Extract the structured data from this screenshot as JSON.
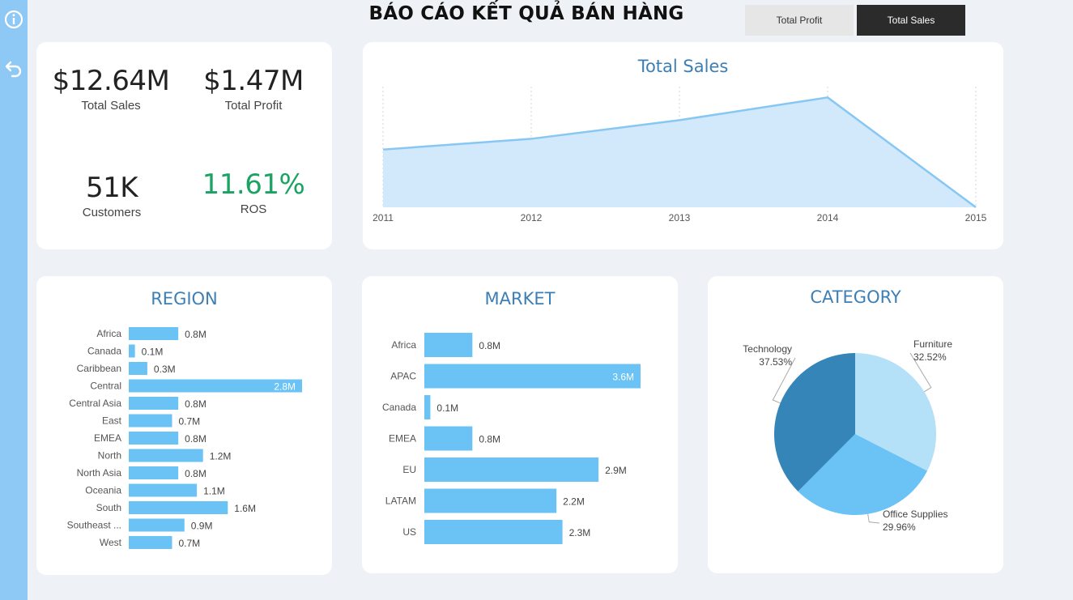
{
  "sidebar": {
    "info_icon": "info-icon",
    "back_icon": "back-arrow-icon"
  },
  "header": {
    "title": "BÁO CÁO KẾT QUẢ BÁN HÀNG"
  },
  "toggles": {
    "profit_label": "Total Profit",
    "sales_label": "Total Sales",
    "active": "Total Sales"
  },
  "kpis": {
    "total_sales": {
      "value": "$12.64M",
      "label": "Total Sales"
    },
    "total_profit": {
      "value": "$1.47M",
      "label": "Total Profit"
    },
    "customers": {
      "value": "51K",
      "label": "Customers"
    },
    "ros": {
      "value": "11.61%",
      "label": "ROS"
    }
  },
  "colors": {
    "bar": "#6bc3f5",
    "area_fill": "#d2e8fb",
    "area_line": "#86c7f3",
    "title": "#3d7fb5",
    "ros": "#1aa363",
    "pie": [
      "#b4e0f8",
      "#6bc3f5",
      "#3585b8"
    ]
  },
  "chart_data": [
    {
      "type": "area",
      "title": "Total Sales",
      "x": [
        "2011",
        "2012",
        "2013",
        "2014",
        "2015"
      ],
      "values": [
        2.26,
        2.68,
        3.41,
        4.3,
        0.0
      ],
      "ylim": [
        0,
        4.5
      ],
      "grid": "vertical dotted"
    },
    {
      "type": "bar",
      "orientation": "horizontal",
      "title": "REGION",
      "categories": [
        "Africa",
        "Canada",
        "Caribbean",
        "Central",
        "Central Asia",
        "East",
        "EMEA",
        "North",
        "North Asia",
        "Oceania",
        "South",
        "Southeast ...",
        "West"
      ],
      "values": [
        0.8,
        0.1,
        0.3,
        2.8,
        0.8,
        0.7,
        0.8,
        1.2,
        0.8,
        1.1,
        1.6,
        0.9,
        0.7
      ],
      "labels": [
        "0.8M",
        "0.1M",
        "0.3M",
        "2.8M",
        "0.8M",
        "0.7M",
        "0.8M",
        "1.2M",
        "0.8M",
        "1.1M",
        "1.6M",
        "0.9M",
        "0.7M"
      ],
      "xlim": [
        0,
        2.8
      ]
    },
    {
      "type": "bar",
      "orientation": "horizontal",
      "title": "MARKET",
      "categories": [
        "Africa",
        "APAC",
        "Canada",
        "EMEA",
        "EU",
        "LATAM",
        "US"
      ],
      "values": [
        0.8,
        3.6,
        0.1,
        0.8,
        2.9,
        2.2,
        2.3
      ],
      "labels": [
        "0.8M",
        "3.6M",
        "0.1M",
        "0.8M",
        "2.9M",
        "2.2M",
        "2.3M"
      ],
      "xlim": [
        0,
        3.6
      ]
    },
    {
      "type": "pie",
      "title": "CATEGORY",
      "categories": [
        "Furniture",
        "Office Supplies",
        "Technology"
      ],
      "values": [
        32.52,
        29.96,
        37.53
      ],
      "labels": [
        "32.52%",
        "29.96%",
        "37.53%"
      ]
    }
  ]
}
